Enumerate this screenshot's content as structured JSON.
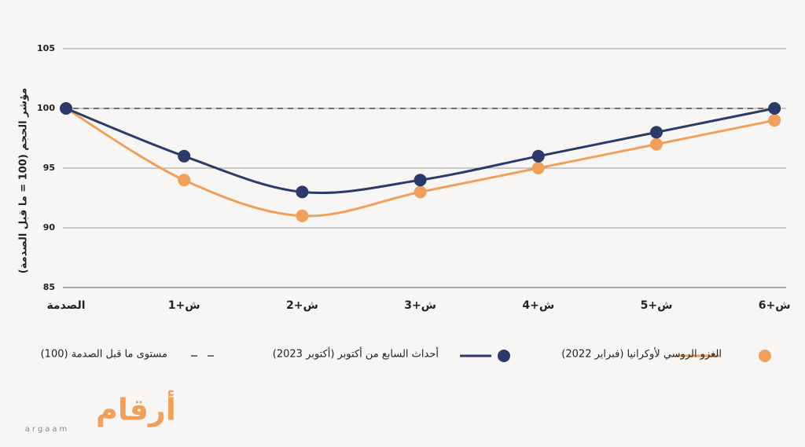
{
  "chart_data": {
    "type": "line",
    "y_label": "مؤشر الحجم (100 = ما قبل الصدمة)",
    "categories": [
      "الصدمة",
      "ش+1",
      "ش+2",
      "ش+3",
      "ش+4",
      "ش+5",
      "ش+6"
    ],
    "series": [
      {
        "name": "الغزو الروسي لأوكرانيا (فبراير 2022)",
        "color": "#f0a05a",
        "values": [
          100,
          94,
          91,
          93,
          95,
          97,
          99
        ]
      },
      {
        "name": "أحداث السابع من أكتوبر (أكتوبر 2023)",
        "color": "#2b3a6b",
        "values": [
          100,
          96,
          93,
          94,
          96,
          98,
          100
        ]
      }
    ],
    "reference_line": {
      "value": 100,
      "label": "مستوى ما قبل الصدمة (100)"
    },
    "ylim": [
      85,
      105
    ],
    "yticks": [
      85,
      90,
      95,
      100,
      105
    ],
    "grid": true
  },
  "logo": {
    "name": "أرقام",
    "subtitle": "argaam"
  }
}
